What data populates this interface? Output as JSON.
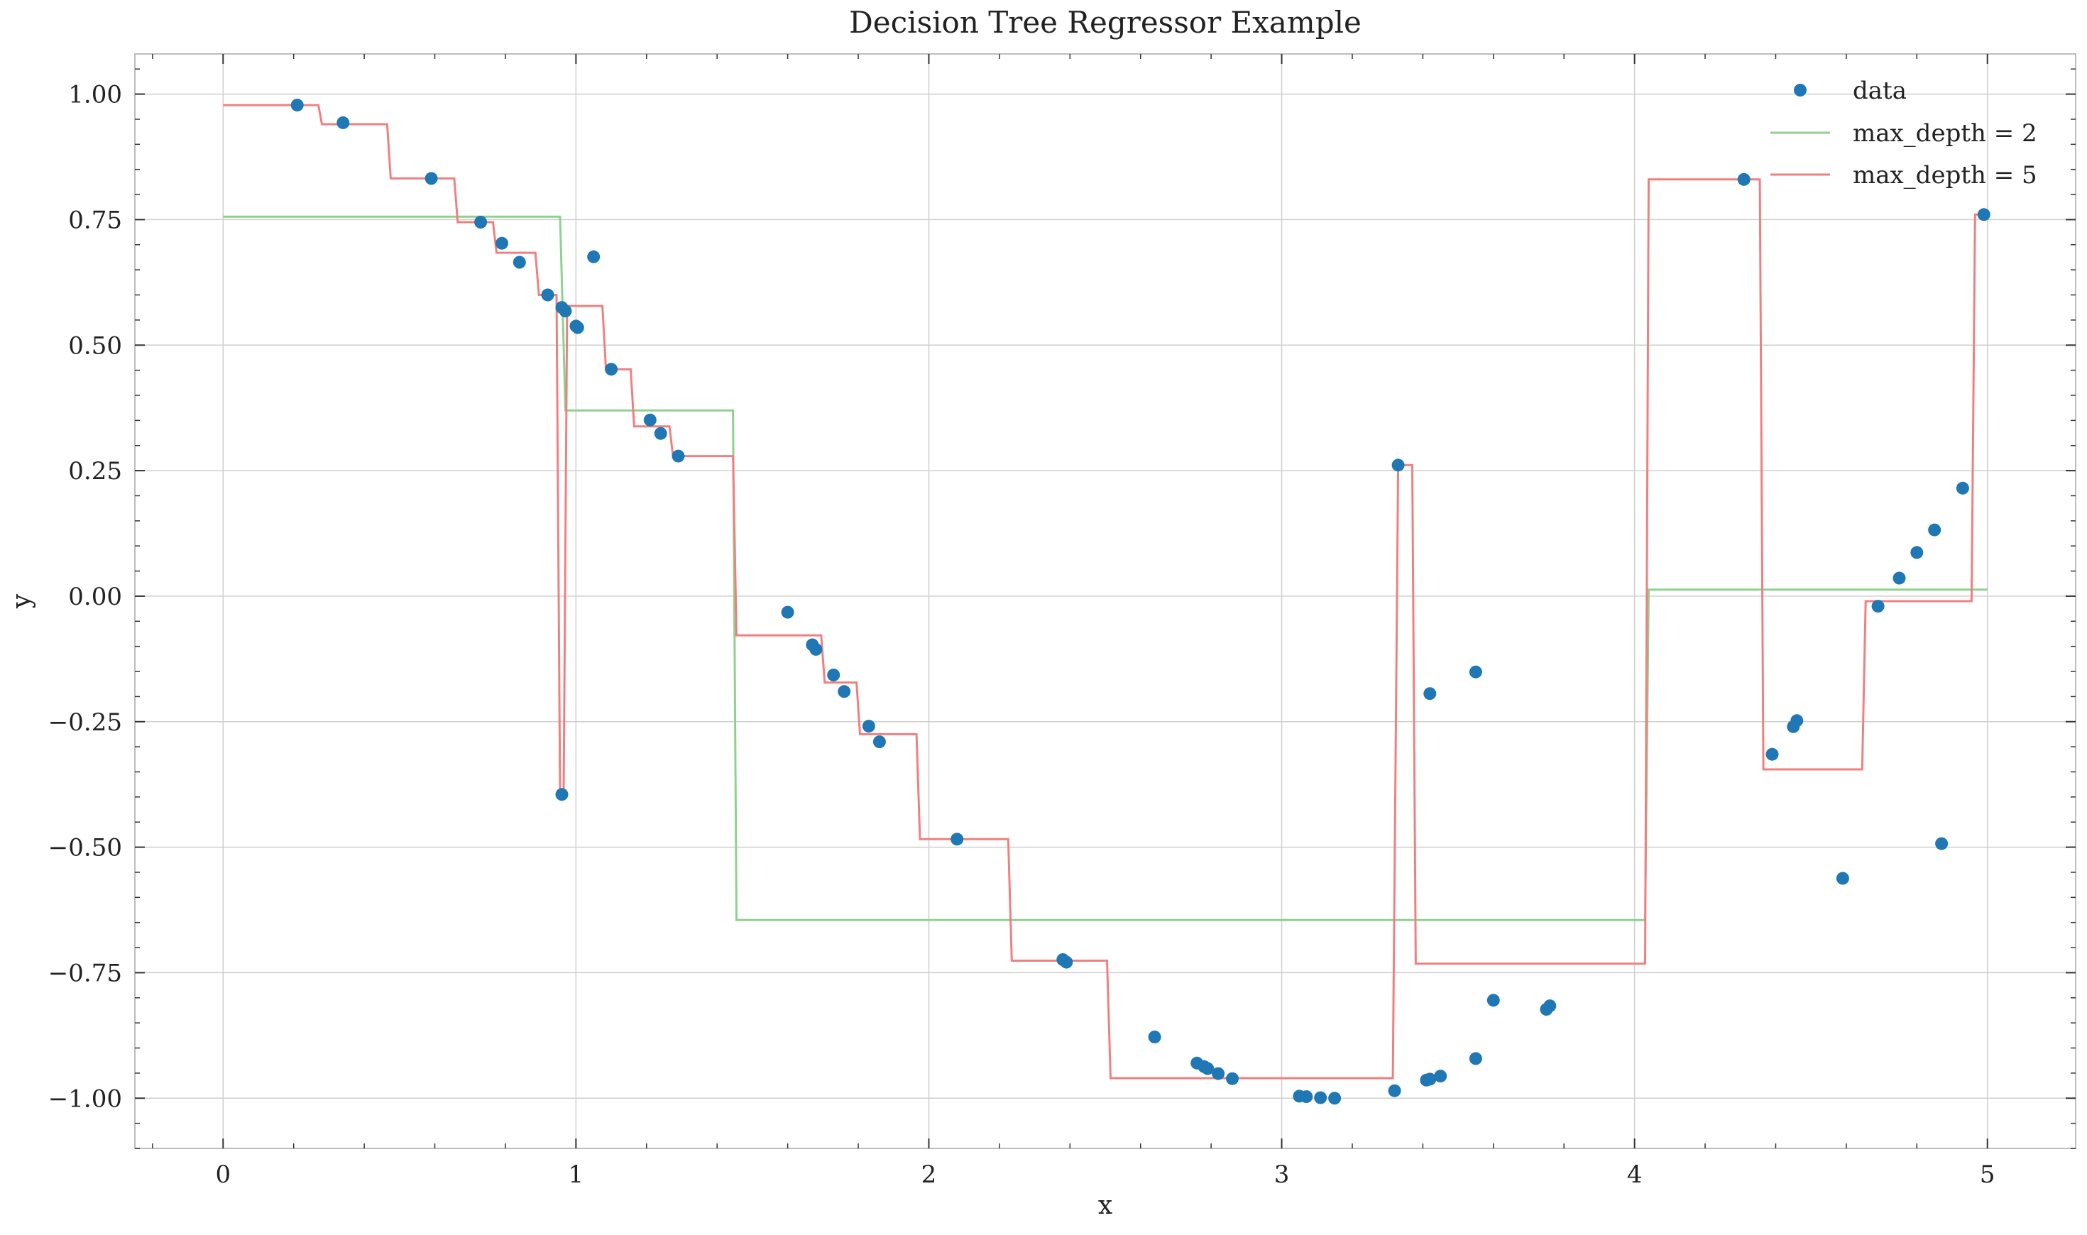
{
  "chart_data": {
    "type": "scatter",
    "title": "Decision Tree Regressor Example",
    "xlabel": "x",
    "ylabel": "y",
    "xlim": [
      -0.25,
      5.25
    ],
    "ylim": [
      -1.1,
      1.08
    ],
    "xticks": [
      0,
      1,
      2,
      3,
      4,
      5
    ],
    "xtick_labels": [
      "0",
      "1",
      "2",
      "3",
      "4",
      "5"
    ],
    "yticks": [
      1.0,
      0.75,
      0.5,
      0.25,
      0.0,
      -0.25,
      -0.5,
      -0.75,
      -1.0
    ],
    "ytick_labels": [
      "1.00",
      "0.75",
      "0.50",
      "0.25",
      "0.00",
      "−0.25",
      "−0.50",
      "−0.75",
      "−1.00"
    ],
    "grid": true,
    "legend_position": "top-right",
    "legend": [
      "data",
      "max_depth = 2",
      "max_depth = 5"
    ],
    "colors": {
      "data": "#1f77b4",
      "max_depth_2": "#8fd18f",
      "max_depth_5": "#f08080"
    },
    "series": [
      {
        "name": "data",
        "type": "scatter",
        "points": [
          [
            0.21,
            0.978
          ],
          [
            0.34,
            0.943
          ],
          [
            0.59,
            0.832
          ],
          [
            0.73,
            0.745
          ],
          [
            0.79,
            0.703
          ],
          [
            0.84,
            0.665
          ],
          [
            0.92,
            0.6
          ],
          [
            0.96,
            0.575
          ],
          [
            0.97,
            0.568
          ],
          [
            1.0,
            0.538
          ],
          [
            1.005,
            0.535
          ],
          [
            1.05,
            0.676
          ],
          [
            1.1,
            0.452
          ],
          [
            1.21,
            0.351
          ],
          [
            1.24,
            0.324
          ],
          [
            1.29,
            0.279
          ],
          [
            0.96,
            -0.395
          ],
          [
            1.6,
            -0.032
          ],
          [
            1.67,
            -0.097
          ],
          [
            1.68,
            -0.106
          ],
          [
            1.73,
            -0.157
          ],
          [
            1.76,
            -0.19
          ],
          [
            1.83,
            -0.259
          ],
          [
            1.86,
            -0.29
          ],
          [
            2.08,
            -0.484
          ],
          [
            2.38,
            -0.724
          ],
          [
            2.39,
            -0.729
          ],
          [
            2.64,
            -0.878
          ],
          [
            2.76,
            -0.93
          ],
          [
            2.78,
            -0.937
          ],
          [
            2.79,
            -0.941
          ],
          [
            2.82,
            -0.951
          ],
          [
            2.86,
            -0.961
          ],
          [
            3.05,
            -0.996
          ],
          [
            3.07,
            -0.997
          ],
          [
            3.11,
            -0.999
          ],
          [
            3.15,
            -1.0
          ],
          [
            3.32,
            -0.985
          ],
          [
            3.33,
            0.261
          ],
          [
            3.41,
            -0.964
          ],
          [
            3.42,
            -0.962
          ],
          [
            3.42,
            -0.194
          ],
          [
            3.45,
            -0.956
          ],
          [
            3.55,
            -0.151
          ],
          [
            3.55,
            -0.921
          ],
          [
            3.6,
            -0.805
          ],
          [
            3.75,
            -0.823
          ],
          [
            3.76,
            -0.816
          ],
          [
            4.31,
            0.83
          ],
          [
            4.39,
            -0.315
          ],
          [
            4.45,
            -0.26
          ],
          [
            4.46,
            -0.248
          ],
          [
            4.59,
            -0.562
          ],
          [
            4.69,
            -0.02
          ],
          [
            4.75,
            0.036
          ],
          [
            4.8,
            0.087
          ],
          [
            4.85,
            0.132
          ],
          [
            4.87,
            -0.493
          ],
          [
            4.93,
            0.215
          ],
          [
            4.99,
            0.76
          ]
        ]
      },
      {
        "name": "max_depth = 2",
        "type": "line",
        "points": [
          [
            0.0,
            0.756
          ],
          [
            0.955,
            0.756
          ],
          [
            0.97,
            0.37
          ],
          [
            1.445,
            0.37
          ],
          [
            1.455,
            -0.645
          ],
          [
            4.03,
            -0.645
          ],
          [
            4.04,
            0.013
          ],
          [
            5.0,
            0.013
          ]
        ]
      },
      {
        "name": "max_depth = 5",
        "type": "line",
        "points": [
          [
            0.0,
            0.978
          ],
          [
            0.27,
            0.978
          ],
          [
            0.28,
            0.94
          ],
          [
            0.465,
            0.94
          ],
          [
            0.475,
            0.832
          ],
          [
            0.655,
            0.832
          ],
          [
            0.665,
            0.745
          ],
          [
            0.765,
            0.745
          ],
          [
            0.775,
            0.684
          ],
          [
            0.885,
            0.684
          ],
          [
            0.895,
            0.6
          ],
          [
            0.945,
            0.6
          ],
          [
            0.955,
            -0.395
          ],
          [
            0.965,
            -0.395
          ],
          [
            0.975,
            0.578
          ],
          [
            1.075,
            0.578
          ],
          [
            1.085,
            0.452
          ],
          [
            1.155,
            0.452
          ],
          [
            1.165,
            0.338
          ],
          [
            1.265,
            0.338
          ],
          [
            1.275,
            0.279
          ],
          [
            1.445,
            0.279
          ],
          [
            1.455,
            -0.078
          ],
          [
            1.695,
            -0.078
          ],
          [
            1.705,
            -0.172
          ],
          [
            1.795,
            -0.172
          ],
          [
            1.805,
            -0.275
          ],
          [
            1.965,
            -0.275
          ],
          [
            1.975,
            -0.484
          ],
          [
            2.225,
            -0.484
          ],
          [
            2.235,
            -0.726
          ],
          [
            2.505,
            -0.726
          ],
          [
            2.515,
            -0.96
          ],
          [
            3.315,
            -0.96
          ],
          [
            3.33,
            0.261
          ],
          [
            3.37,
            0.261
          ],
          [
            3.38,
            -0.732
          ],
          [
            4.03,
            -0.732
          ],
          [
            4.04,
            0.83
          ],
          [
            4.355,
            0.83
          ],
          [
            4.365,
            -0.345
          ],
          [
            4.645,
            -0.345
          ],
          [
            4.655,
            -0.01
          ],
          [
            4.955,
            -0.01
          ],
          [
            4.965,
            0.76
          ],
          [
            5.0,
            0.76
          ]
        ]
      }
    ]
  }
}
